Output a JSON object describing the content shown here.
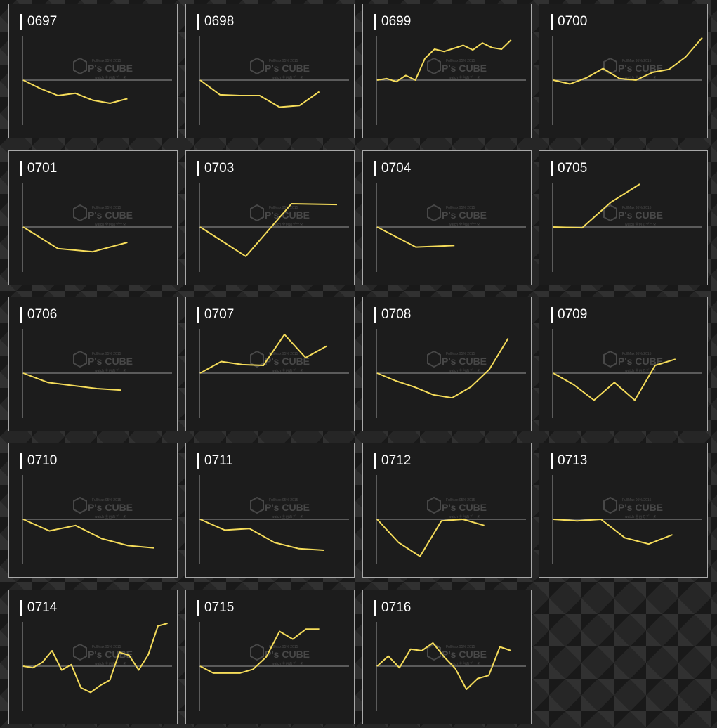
{
  "page": {
    "background_color": "#262626",
    "panel_color": "#1c1c1c",
    "line_color": "#f5dc5a"
  },
  "watermark": {
    "brand": "P's CUBE",
    "tagline": "FullMax 95% 2015",
    "subline": "watch 全台のデータ"
  },
  "charts": [
    {
      "id": "0697",
      "values": [
        0,
        -11,
        -20,
        -17,
        -26,
        -30,
        -24
      ]
    },
    {
      "id": "0698",
      "values": [
        0,
        -19,
        -20,
        -20,
        -35,
        -33,
        -15
      ]
    },
    {
      "id": "0699",
      "values": [
        0,
        2,
        -2,
        6,
        0,
        28,
        40,
        37,
        41,
        45,
        39,
        48,
        42,
        40,
        52
      ]
    },
    {
      "id": "0700",
      "values": [
        0,
        -5,
        3,
        15,
        2,
        0,
        10,
        14,
        30,
        55
      ]
    },
    {
      "id": "0701",
      "values": [
        0,
        -28,
        -32,
        -20
      ]
    },
    {
      "id": "0703",
      "values": [
        0,
        -38,
        30,
        29
      ]
    },
    {
      "id": "0704",
      "values": [
        0,
        -26,
        -24
      ]
    },
    {
      "id": "0705",
      "values": [
        0,
        -1,
        32,
        56
      ]
    },
    {
      "id": "0706",
      "values": [
        0,
        -12,
        -16,
        -20,
        -22
      ]
    },
    {
      "id": "0707",
      "values": [
        0,
        15,
        11,
        10,
        50,
        20,
        35
      ]
    },
    {
      "id": "0708",
      "values": [
        0,
        -10,
        -18,
        -28,
        -32,
        -18,
        5,
        45
      ]
    },
    {
      "id": "0709",
      "values": [
        0,
        -15,
        -35,
        -12,
        -35,
        10,
        18
      ]
    },
    {
      "id": "0710",
      "values": [
        0,
        -15,
        -8,
        -25,
        -34,
        -37
      ]
    },
    {
      "id": "0711",
      "values": [
        0,
        -14,
        -12,
        -30,
        -38,
        -40
      ]
    },
    {
      "id": "0712",
      "values": [
        0,
        -30,
        -48,
        -2,
        0,
        -8
      ]
    },
    {
      "id": "0713",
      "values": [
        0,
        -2,
        0,
        -24,
        -32,
        -20
      ]
    },
    {
      "id": "0714",
      "values": [
        0,
        -2,
        5,
        20,
        -5,
        2,
        -28,
        -34,
        -25,
        -18,
        18,
        14,
        -5,
        15,
        52,
        56
      ]
    },
    {
      "id": "0715",
      "values": [
        0,
        -9,
        -9,
        -9,
        -4,
        12,
        45,
        35,
        48,
        48
      ]
    },
    {
      "id": "0716",
      "values": [
        0,
        13,
        -2,
        22,
        20,
        30,
        12,
        -3,
        -30,
        -16,
        -12,
        25,
        20
      ]
    }
  ]
}
